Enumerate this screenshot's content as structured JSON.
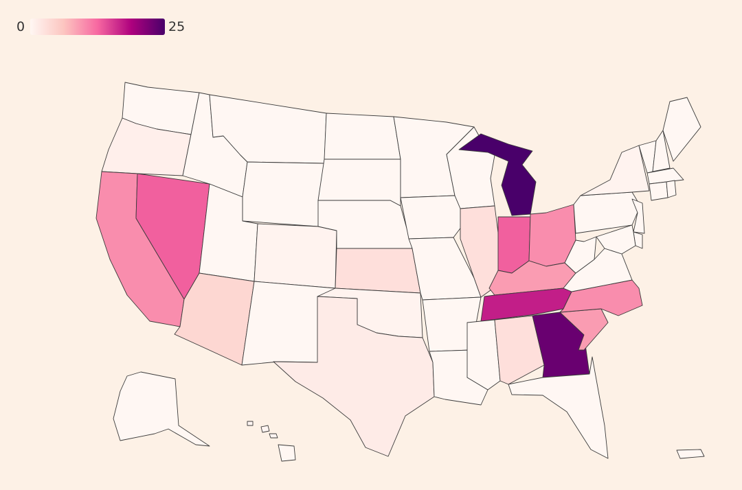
{
  "legend": {
    "min": "0",
    "max": "25"
  },
  "colors": {
    "background": "#fdf1e6",
    "scale": [
      "#fff7f3",
      "#fcc5c0",
      "#f768a1",
      "#ae017e",
      "#49006a"
    ]
  },
  "states": [
    {
      "id": "WA",
      "value": 0
    },
    {
      "id": "OR",
      "value": 1
    },
    {
      "id": "CA",
      "value": 10
    },
    {
      "id": "NV",
      "value": 13
    },
    {
      "id": "ID",
      "value": 0
    },
    {
      "id": "MT",
      "value": 0
    },
    {
      "id": "WY",
      "value": 0
    },
    {
      "id": "UT",
      "value": 0
    },
    {
      "id": "AZ",
      "value": 4
    },
    {
      "id": "CO",
      "value": 0.5
    },
    {
      "id": "NM",
      "value": 0
    },
    {
      "id": "ND",
      "value": 0
    },
    {
      "id": "SD",
      "value": 0
    },
    {
      "id": "NE",
      "value": 0
    },
    {
      "id": "KS",
      "value": 3
    },
    {
      "id": "OK",
      "value": 0.5
    },
    {
      "id": "TX",
      "value": 1.5
    },
    {
      "id": "MN",
      "value": 0
    },
    {
      "id": "IA",
      "value": 0
    },
    {
      "id": "MO",
      "value": 0
    },
    {
      "id": "AR",
      "value": 0
    },
    {
      "id": "LA",
      "value": 0
    },
    {
      "id": "WI",
      "value": 0
    },
    {
      "id": "IL",
      "value": 3
    },
    {
      "id": "MI",
      "value": 25
    },
    {
      "id": "IN",
      "value": 13
    },
    {
      "id": "OH",
      "value": 10
    },
    {
      "id": "KY",
      "value": 9
    },
    {
      "id": "TN",
      "value": 17
    },
    {
      "id": "MS",
      "value": 0
    },
    {
      "id": "AL",
      "value": 3
    },
    {
      "id": "GA",
      "value": 23
    },
    {
      "id": "FL",
      "value": 0
    },
    {
      "id": "SC",
      "value": 9
    },
    {
      "id": "NC",
      "value": 10
    },
    {
      "id": "VA",
      "value": 0
    },
    {
      "id": "WV",
      "value": 0
    },
    {
      "id": "PA",
      "value": 0
    },
    {
      "id": "NY",
      "value": 0.5
    },
    {
      "id": "VT",
      "value": 0
    },
    {
      "id": "NH",
      "value": 0
    },
    {
      "id": "ME",
      "value": 0
    },
    {
      "id": "MA",
      "value": 0
    },
    {
      "id": "CT",
      "value": 0
    },
    {
      "id": "RI",
      "value": 0
    },
    {
      "id": "NJ",
      "value": 0
    },
    {
      "id": "DE",
      "value": 0
    },
    {
      "id": "MD",
      "value": 0
    },
    {
      "id": "AK",
      "value": 0
    },
    {
      "id": "HI",
      "value": 0
    },
    {
      "id": "PR",
      "value": 0
    }
  ]
}
